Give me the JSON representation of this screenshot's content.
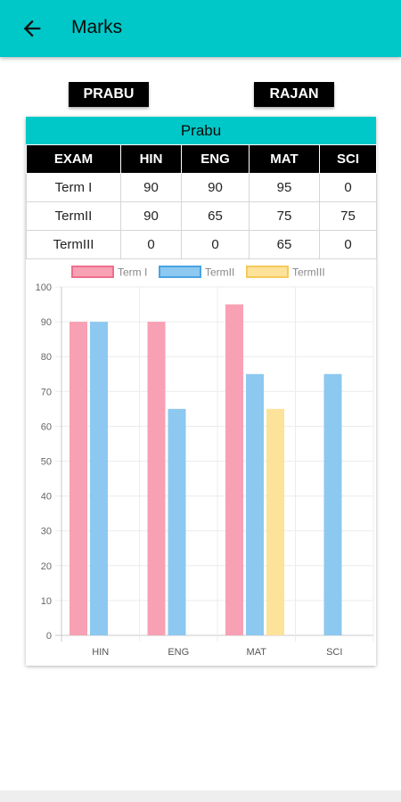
{
  "appbar": {
    "title": "Marks",
    "back_icon": "arrow-left-icon"
  },
  "students": [
    {
      "label": "PRABU"
    },
    {
      "label": "RAJAN"
    }
  ],
  "card": {
    "title": "Prabu",
    "headers": [
      "EXAM",
      "HIN",
      "ENG",
      "MAT",
      "SCI"
    ],
    "rows": [
      {
        "exam": "Term I",
        "values": [
          "90",
          "90",
          "95",
          "0"
        ]
      },
      {
        "exam": "TermII",
        "values": [
          "90",
          "65",
          "75",
          "75"
        ]
      },
      {
        "exam": "TermIII",
        "values": [
          "0",
          "0",
          "65",
          "0"
        ]
      }
    ]
  },
  "colors": {
    "accent": "#00c8c8"
  },
  "chart_data": {
    "type": "bar",
    "categories": [
      "HIN",
      "ENG",
      "MAT",
      "SCI"
    ],
    "series": [
      {
        "name": "Term I",
        "values": [
          90,
          90,
          95,
          0
        ],
        "color": "#f8a0b4",
        "border": "#ef6e8c"
      },
      {
        "name": "TermII",
        "values": [
          90,
          65,
          75,
          75
        ],
        "color": "#8cc8f0",
        "border": "#4aa3e3"
      },
      {
        "name": "TermIII",
        "values": [
          0,
          0,
          65,
          0
        ],
        "color": "#fde29a",
        "border": "#f7c95a"
      }
    ],
    "ylim": [
      0,
      100
    ],
    "yticks": [
      "0",
      "10",
      "20",
      "30",
      "40",
      "50",
      "60",
      "70",
      "80",
      "90",
      "100"
    ],
    "grid": true,
    "legend": "top"
  }
}
